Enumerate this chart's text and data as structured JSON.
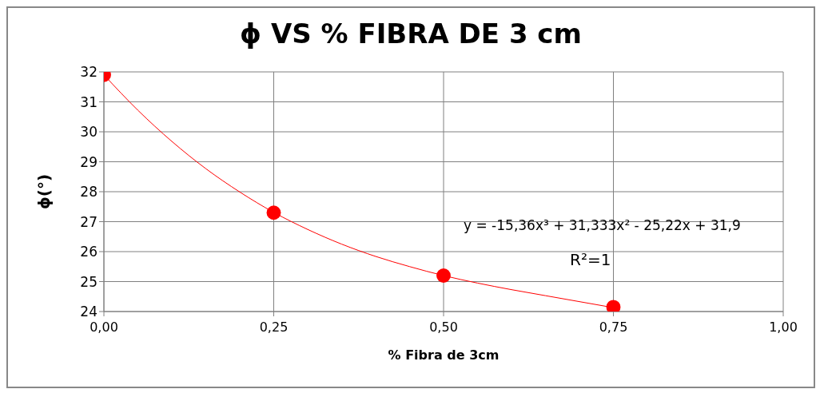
{
  "chart_data": {
    "type": "scatter",
    "title": "ϕ  VS  % FIBRA DE 3 cm",
    "xlabel": "% Fibra de 3cm",
    "ylabel": "ϕ(°)",
    "series": [
      {
        "color": "#ff0000",
        "x": [
          0,
          0.25,
          0.5,
          0.75
        ],
        "values": [
          31.9,
          27.3,
          25.2,
          24.15
        ]
      },
      {
        "type": "line",
        "color": "#ff0000",
        "marker": "none",
        "x": [
          0,
          0.05,
          0.1,
          0.15,
          0.2,
          0.25,
          0.3,
          0.35,
          0.4,
          0.45,
          0.5,
          0.55,
          0.6,
          0.65,
          0.7,
          0.75
        ],
        "values": [
          31.9,
          30.72,
          29.68,
          28.77,
          27.99,
          27.31,
          26.74,
          26.25,
          25.84,
          25.5,
          25.2,
          24.95,
          24.73,
          24.53,
          24.33,
          24.13
        ]
      }
    ],
    "annotations": [
      "y = -15,36x³ + 31,333x² - 25,22x + 31,9",
      "R²=1"
    ],
    "xlim": [
      0,
      1
    ],
    "xticks": [
      {
        "value": 0,
        "label": "0,00"
      },
      {
        "value": 0.25,
        "label": "0,25"
      },
      {
        "value": 0.5,
        "label": "0,50"
      },
      {
        "value": 0.75,
        "label": "0,75"
      },
      {
        "value": 1,
        "label": "1,00"
      }
    ],
    "ylim": [
      24,
      32
    ],
    "yticks": [
      24,
      25,
      26,
      27,
      28,
      29,
      30,
      31,
      32
    ],
    "grid": true,
    "legend": false,
    "marker": "circle"
  }
}
